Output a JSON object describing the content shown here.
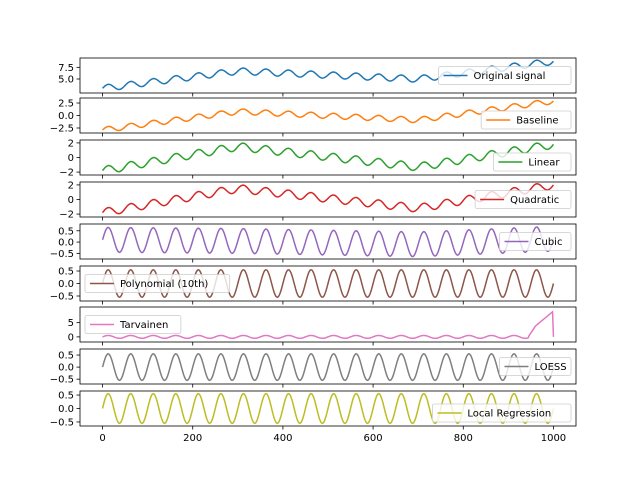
{
  "figure": {
    "background": "#ffffff",
    "shared_x_ticks": [
      "0",
      "200",
      "400",
      "600",
      "800",
      "1000"
    ]
  },
  "chart_data": [
    {
      "type": "line",
      "series": [
        {
          "name": "Original signal",
          "color": "#1f77b4"
        }
      ],
      "x_range": [
        0,
        1000
      ],
      "ylim": [
        2.0,
        9.5
      ],
      "yticks": [
        5.0,
        7.5
      ],
      "ytick_labels": [
        "5.0",
        "7.5"
      ],
      "legend_position": "right",
      "components": {
        "sine_amplitude": 0.7,
        "sine_period": 50,
        "trend": [
          [
            0,
            3.0
          ],
          [
            300,
            6.7
          ],
          [
            700,
            5.0
          ],
          [
            1000,
            8.8
          ]
        ]
      }
    },
    {
      "type": "line",
      "series": [
        {
          "name": "Baseline",
          "color": "#ff7f0e"
        }
      ],
      "x_range": [
        0,
        1000
      ],
      "ylim": [
        -3.5,
        3.5
      ],
      "yticks": [
        -2.5,
        0.0,
        2.5
      ],
      "ytick_labels": [
        "−2.5",
        "0.0",
        "2.5"
      ],
      "legend_position": "lower right",
      "components": {
        "sine_amplitude": 0.55,
        "sine_period": 50,
        "trend": [
          [
            0,
            -2.9
          ],
          [
            300,
            0.8
          ],
          [
            700,
            -0.9
          ],
          [
            1000,
            2.9
          ]
        ]
      }
    },
    {
      "type": "line",
      "series": [
        {
          "name": "Linear",
          "color": "#2ca02c"
        }
      ],
      "x_range": [
        0,
        1000
      ],
      "ylim": [
        -2.4,
        2.4
      ],
      "yticks": [
        -2,
        0,
        2
      ],
      "ytick_labels": [
        "−2",
        "0",
        "2"
      ],
      "legend_position": "lower right",
      "components": {
        "sine_amplitude": 0.55,
        "sine_period": 50,
        "trend": [
          [
            0,
            -1.8
          ],
          [
            300,
            1.5
          ],
          [
            700,
            -1.3
          ],
          [
            1000,
            1.8
          ]
        ]
      }
    },
    {
      "type": "line",
      "series": [
        {
          "name": "Quadratic",
          "color": "#d62728"
        }
      ],
      "x_range": [
        0,
        1000
      ],
      "ylim": [
        -2.4,
        2.4
      ],
      "yticks": [
        -2,
        0,
        2
      ],
      "ytick_labels": [
        "−2",
        "0",
        "2"
      ],
      "legend_position": "right",
      "components": {
        "sine_amplitude": 0.55,
        "sine_period": 50,
        "trend": [
          [
            0,
            -1.8
          ],
          [
            300,
            1.5
          ],
          [
            700,
            -1.2
          ],
          [
            1000,
            2.0
          ]
        ]
      }
    },
    {
      "type": "line",
      "series": [
        {
          "name": "Cubic",
          "color": "#9467bd"
        }
      ],
      "x_range": [
        0,
        1000
      ],
      "ylim": [
        -0.75,
        0.8
      ],
      "yticks": [
        -0.5,
        0.0,
        0.5
      ],
      "ytick_labels": [
        "−0.5",
        "0.0",
        "0.5"
      ],
      "legend_position": "right",
      "components": {
        "sine_amplitude": 0.55,
        "sine_period": 50,
        "trend": [
          [
            0,
            0.1
          ],
          [
            300,
            0.05
          ],
          [
            700,
            -0.1
          ],
          [
            1000,
            0.15
          ]
        ]
      }
    },
    {
      "type": "line",
      "series": [
        {
          "name": "Polynomial (10th)",
          "color": "#8c564b"
        }
      ],
      "x_range": [
        0,
        1000
      ],
      "ylim": [
        -0.7,
        0.7
      ],
      "yticks": [
        -0.5,
        0.0,
        0.5
      ],
      "ytick_labels": [
        "−0.5",
        "0.0",
        "0.5"
      ],
      "legend_position": "left",
      "components": {
        "sine_amplitude": 0.55,
        "sine_period": 50,
        "trend": [
          [
            0,
            0.0
          ],
          [
            1000,
            0.0
          ]
        ]
      }
    },
    {
      "type": "line",
      "series": [
        {
          "name": "Tarvainen",
          "color": "#e377c2"
        }
      ],
      "x_range": [
        0,
        1000
      ],
      "ylim": [
        -1.8,
        10.5
      ],
      "yticks": [
        0,
        5
      ],
      "ytick_labels": [
        "0",
        "5"
      ],
      "legend_position": "left",
      "components": {
        "sine_amplitude": 0.5,
        "sine_period": 50,
        "trend": [
          [
            0,
            0.0
          ],
          [
            1000,
            0.0
          ]
        ],
        "end_rise": [
          [
            945,
            0.2
          ],
          [
            960,
            3.8
          ],
          [
            998,
            8.8
          ],
          [
            1000,
            0.0
          ]
        ]
      }
    },
    {
      "type": "line",
      "series": [
        {
          "name": "LOESS",
          "color": "#7f7f7f"
        }
      ],
      "x_range": [
        0,
        1000
      ],
      "ylim": [
        -0.7,
        0.75
      ],
      "yticks": [
        -0.5,
        0.0,
        0.5
      ],
      "ytick_labels": [
        "−0.5",
        "0.0",
        "0.5"
      ],
      "legend_position": "right",
      "components": {
        "sine_amplitude": 0.55,
        "sine_period": 50,
        "trend": [
          [
            0,
            0.0
          ],
          [
            1000,
            0.0
          ]
        ]
      }
    },
    {
      "type": "line",
      "series": [
        {
          "name": "Local Regression",
          "color": "#bcbd22"
        }
      ],
      "x_range": [
        0,
        1000
      ],
      "ylim": [
        -0.65,
        0.65
      ],
      "yticks": [
        -0.5,
        0.0,
        0.5
      ],
      "ytick_labels": [
        "−0.5",
        "0.0",
        "0.5"
      ],
      "legend_position": "lower right",
      "components": {
        "sine_amplitude": 0.55,
        "sine_period": 50,
        "trend": [
          [
            0,
            0.0
          ],
          [
            1000,
            0.0
          ]
        ]
      }
    }
  ]
}
